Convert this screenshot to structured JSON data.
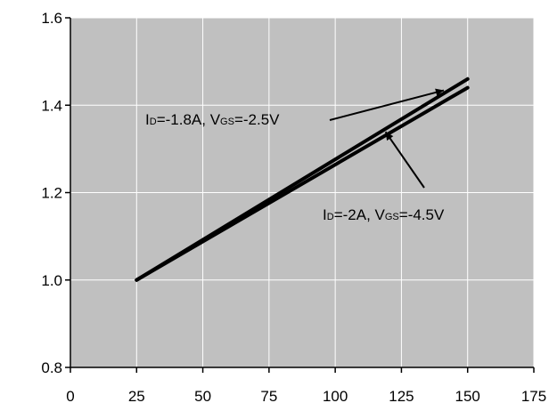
{
  "chart_data": {
    "type": "line",
    "title": "",
    "xlabel": "",
    "ylabel": "",
    "xlim": [
      0,
      175
    ],
    "ylim": [
      0.8,
      1.6
    ],
    "x_ticks": [
      0,
      25,
      50,
      75,
      100,
      125,
      150,
      175
    ],
    "y_ticks": [
      0.8,
      1.0,
      1.2,
      1.4,
      1.6
    ],
    "x_tick_labels": [
      "0",
      "25",
      "50",
      "75",
      "100",
      "125",
      "150",
      "175"
    ],
    "y_tick_labels": [
      "0.8",
      "1.0",
      "1.2",
      "1.4",
      "1.6"
    ],
    "grid": true,
    "background_color": "#c0c0c0",
    "line_color": "#000000",
    "series": [
      {
        "x": [
          25,
          150
        ],
        "y": [
          1.0,
          1.46
        ]
      },
      {
        "x": [
          25,
          150
        ],
        "y": [
          1.0,
          1.44
        ]
      }
    ],
    "annotations": [
      {
        "parts": [
          [
            "I",
            "n"
          ],
          [
            "D",
            "s"
          ],
          [
            "=-1.8A, V",
            "n"
          ],
          [
            "GS",
            "s"
          ],
          [
            "=-2.5V",
            "n"
          ]
        ],
        "arrow_to": [
          141,
          1.434
        ]
      },
      {
        "parts": [
          [
            "I",
            "n"
          ],
          [
            "D",
            "s"
          ],
          [
            "=-2A, V",
            "n"
          ],
          [
            "GS",
            "s"
          ],
          [
            "=-4.5V",
            "n"
          ]
        ],
        "arrow_to": [
          119,
          1.339
        ]
      }
    ]
  }
}
